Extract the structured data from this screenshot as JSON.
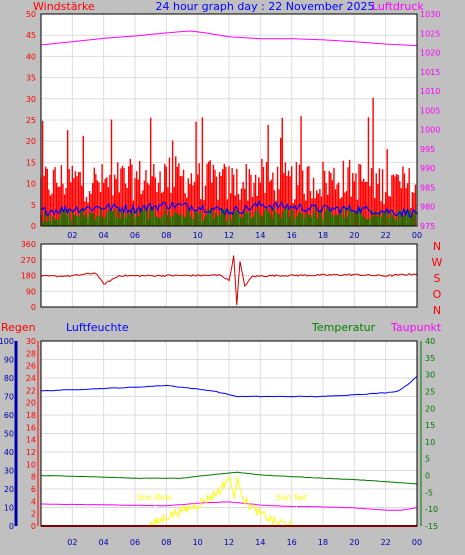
{
  "header": {
    "left_label": "Windstärke",
    "title": "24 hour graph day : 22 November 2025",
    "right_label": "Luftdruck"
  },
  "wind_dir_letters": [
    "N",
    "W",
    "S",
    "O",
    "N"
  ],
  "bottom_labels": {
    "regen": "Regen",
    "luftfeuchte": "Luftfeuchte",
    "temperatur": "Temperatur",
    "taupunkt": "Taupunkt"
  },
  "sun_labels": {
    "rise": "Sun Rise",
    "set": "Sun Set"
  },
  "colors": {
    "background": "#c0c0c0",
    "plot_bg": "#ffffff",
    "wind_red": "#ff0000",
    "wind_blue": "#0000ff",
    "wind_green": "#008000",
    "pressure": "#ff00ff",
    "direction": "#cc0000",
    "humidity": "#0000ff",
    "temperature": "#007700",
    "dewpoint": "#ff00ff",
    "rain": "#ff0000",
    "rain_axis": "#0000aa",
    "solar": "#ffff00",
    "sun_label": "#ffff00"
  },
  "chart_data": [
    {
      "type": "area",
      "panel": "wind_pressure",
      "x_tick_labels": [
        "02",
        "04",
        "06",
        "08",
        "10",
        "12",
        "14",
        "16",
        "18",
        "20",
        "22",
        "00"
      ],
      "left_axis": {
        "ticks": [
          0,
          5,
          10,
          15,
          20,
          25,
          30,
          35,
          40,
          45,
          50
        ],
        "ylim": [
          0,
          50
        ]
      },
      "right_axis": {
        "ticks": [
          975,
          980,
          985,
          990,
          995,
          1000,
          1005,
          1010,
          1015,
          1020,
          1025,
          1030
        ],
        "ylim": [
          975,
          1030
        ]
      },
      "series": [
        {
          "axis": "right",
          "color": "pressure",
          "x": [
            0,
            2,
            4,
            6,
            8,
            9.5,
            10.5,
            12,
            14,
            16,
            18,
            20,
            22,
            24
          ],
          "values": [
            1022,
            1022.8,
            1023.7,
            1024.3,
            1025.1,
            1025.6,
            1025.1,
            1024.1,
            1023.6,
            1023.6,
            1023.3,
            1022.8,
            1022.2,
            1021.8
          ]
        },
        {
          "axis": "left",
          "color": "wind_blue",
          "x": [
            0,
            2,
            4,
            6,
            8,
            10,
            12,
            13,
            14,
            16,
            18,
            20,
            22,
            24
          ],
          "values": [
            3.5,
            4,
            4.5,
            4,
            5,
            4.5,
            3.5,
            4,
            5,
            4.5,
            4,
            4,
            3.5,
            3
          ]
        },
        {
          "axis": "left",
          "color": "wind_red",
          "x": [
            0,
            2,
            4,
            6,
            8,
            10,
            12,
            14,
            16,
            18,
            20,
            22,
            24
          ],
          "values": [
            10,
            11,
            10,
            11,
            12,
            11,
            10,
            11,
            10,
            11,
            11,
            10,
            9
          ]
        },
        {
          "axis": "left",
          "color": "wind_green",
          "x": [
            0,
            4,
            8,
            12,
            16,
            20,
            24
          ],
          "values": [
            2.5,
            3,
            3,
            2.5,
            3,
            3,
            2.5
          ]
        }
      ]
    },
    {
      "type": "line",
      "panel": "wind_direction",
      "y_tick_labels": [
        "0",
        "90",
        "180",
        "270",
        "360"
      ],
      "ylim": [
        0,
        360
      ],
      "series": [
        {
          "color": "direction",
          "x": [
            0,
            2,
            3.5,
            4,
            5,
            6,
            8,
            10,
            11.5,
            12,
            12.3,
            12.5,
            12.7,
            13,
            13.5,
            15,
            18,
            20,
            22,
            24
          ],
          "values": [
            175,
            178,
            195,
            130,
            180,
            178,
            180,
            180,
            182,
            150,
            290,
            15,
            260,
            120,
            175,
            180,
            182,
            185,
            178,
            190
          ]
        }
      ]
    },
    {
      "type": "line",
      "panel": "humidity_temp_rain",
      "axes": {
        "humidity_ticks": [
          0,
          10,
          20,
          30,
          40,
          50,
          60,
          70,
          80,
          90,
          100
        ],
        "rain_ticks": [
          0,
          2,
          4,
          6,
          8,
          10,
          12,
          14,
          16,
          18,
          20,
          22,
          24,
          26,
          28,
          30
        ],
        "temperature_ticks": [
          -15,
          -10,
          -5,
          0,
          5,
          10,
          15,
          20,
          25,
          30,
          35,
          40
        ]
      },
      "series": [
        {
          "name": "Luftfeuchte",
          "axis": "humidity",
          "color": "humidity",
          "x": [
            0,
            3,
            6,
            8,
            9,
            10,
            11,
            12,
            12.5,
            14,
            16,
            18,
            20,
            22,
            22.8,
            23.5,
            24
          ],
          "values": [
            73,
            74,
            75,
            76,
            75,
            74,
            73,
            71,
            70,
            70,
            70,
            70,
            71,
            72,
            73,
            77,
            81
          ]
        },
        {
          "name": "Temperatur",
          "axis": "temperature",
          "color": "temperature",
          "x": [
            0,
            3,
            6,
            9,
            11,
            12.5,
            14,
            16,
            18,
            20,
            22,
            24
          ],
          "values": [
            0,
            -0.3,
            -0.8,
            -0.8,
            0.3,
            1,
            0.2,
            -0.3,
            -0.8,
            -1.2,
            -1.8,
            -2.5
          ]
        },
        {
          "name": "Taupunkt",
          "axis": "temperature",
          "color": "dewpoint",
          "x": [
            0,
            4,
            8,
            10,
            12,
            14,
            16,
            18,
            20,
            22,
            23,
            24
          ],
          "values": [
            -8.5,
            -8.7,
            -9,
            -8.2,
            -7.8,
            -8.8,
            -9.2,
            -9.3,
            -9.6,
            -10.3,
            -10.3,
            -9.5
          ]
        },
        {
          "name": "Solar",
          "axis": "rain",
          "color": "solar",
          "x": [
            0,
            6.7,
            7.2,
            8,
            9,
            10,
            11,
            11.5,
            12,
            12.3,
            12.6,
            13,
            13.5,
            14,
            15,
            16,
            16.2,
            24
          ],
          "values": [
            0,
            0,
            0.3,
            1.5,
            2.5,
            3.5,
            5,
            6,
            8,
            5,
            7.5,
            4,
            3,
            2,
            0.6,
            0.2,
            0,
            0
          ]
        },
        {
          "name": "Regen",
          "axis": "rain",
          "color": "rain",
          "x": [
            0,
            24
          ],
          "values": [
            0,
            0
          ]
        }
      ],
      "sunrise_hour": 7.3,
      "sunset_hour": 16.3
    }
  ]
}
